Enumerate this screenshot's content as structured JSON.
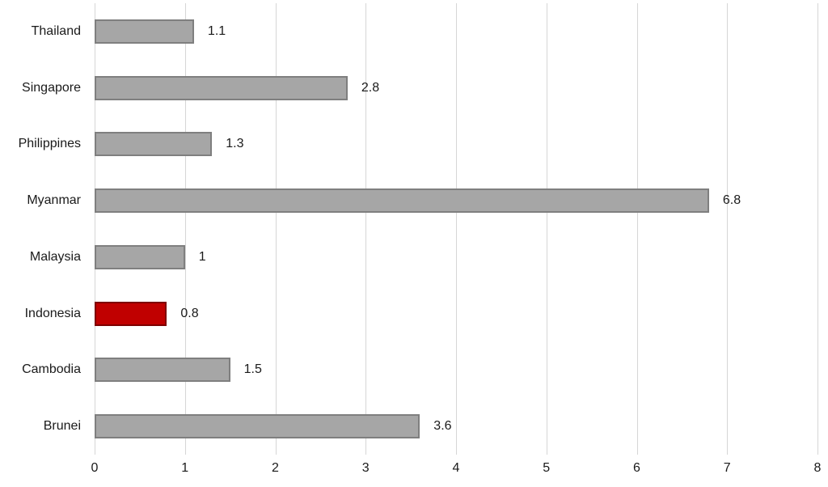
{
  "chart_data": {
    "type": "bar",
    "orientation": "horizontal",
    "title": "",
    "xlabel": "",
    "ylabel": "",
    "categories": [
      "Thailand",
      "Singapore",
      "Philippines",
      "Myanmar",
      "Malaysia",
      "Indonesia",
      "Cambodia",
      "Brunei"
    ],
    "values": [
      1.1,
      2.8,
      1.3,
      6.8,
      1,
      0.8,
      1.5,
      3.6
    ],
    "value_labels": [
      "1.1",
      "2.8",
      "1.3",
      "6.8",
      "1",
      "0.8",
      "1.5",
      "3.6"
    ],
    "highlighted_category": "Indonesia",
    "x_ticks": [
      "0",
      "1",
      "2",
      "3",
      "4",
      "5",
      "6",
      "7",
      "8"
    ],
    "xlim": [
      0,
      8
    ],
    "grid": "vertical-gridlines",
    "legend": "none",
    "colors": {
      "bar_fill": "#a6a6a6",
      "bar_border": "#7f7f7f",
      "highlight_fill": "#c00000",
      "highlight_border": "#7e0000",
      "gridline": "#d6d6d6",
      "text": "#1a1a1a",
      "background": "#ffffff"
    }
  }
}
